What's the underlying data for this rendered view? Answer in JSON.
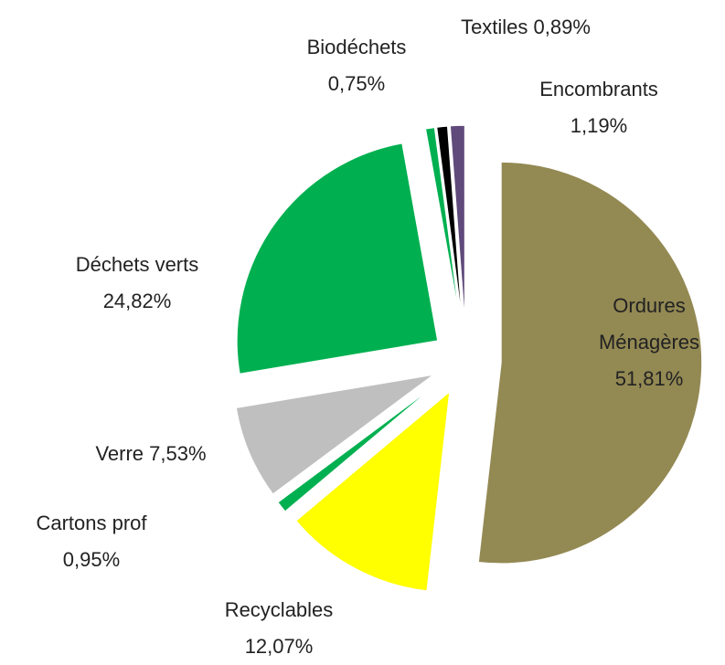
{
  "chart_data": {
    "type": "pie",
    "categories": [
      "Ordures Ménagères",
      "Recyclables",
      "Cartons prof",
      "Verre",
      "Déchets verts",
      "Biodéchets",
      "Textiles",
      "Encombrants"
    ],
    "values": [
      51.81,
      12.07,
      0.95,
      7.53,
      24.82,
      0.75,
      0.89,
      1.19
    ],
    "value_labels": [
      "51,81%",
      "12,07%",
      "0,95%",
      "7,53%",
      "24,82%",
      "0,75%",
      "0,89%",
      "1,19%"
    ],
    "colors": [
      "#938953",
      "#ffff00",
      "#00b050",
      "#bfbfbf",
      "#00b050",
      "#00b050",
      "#000000",
      "#604a7b"
    ]
  }
}
